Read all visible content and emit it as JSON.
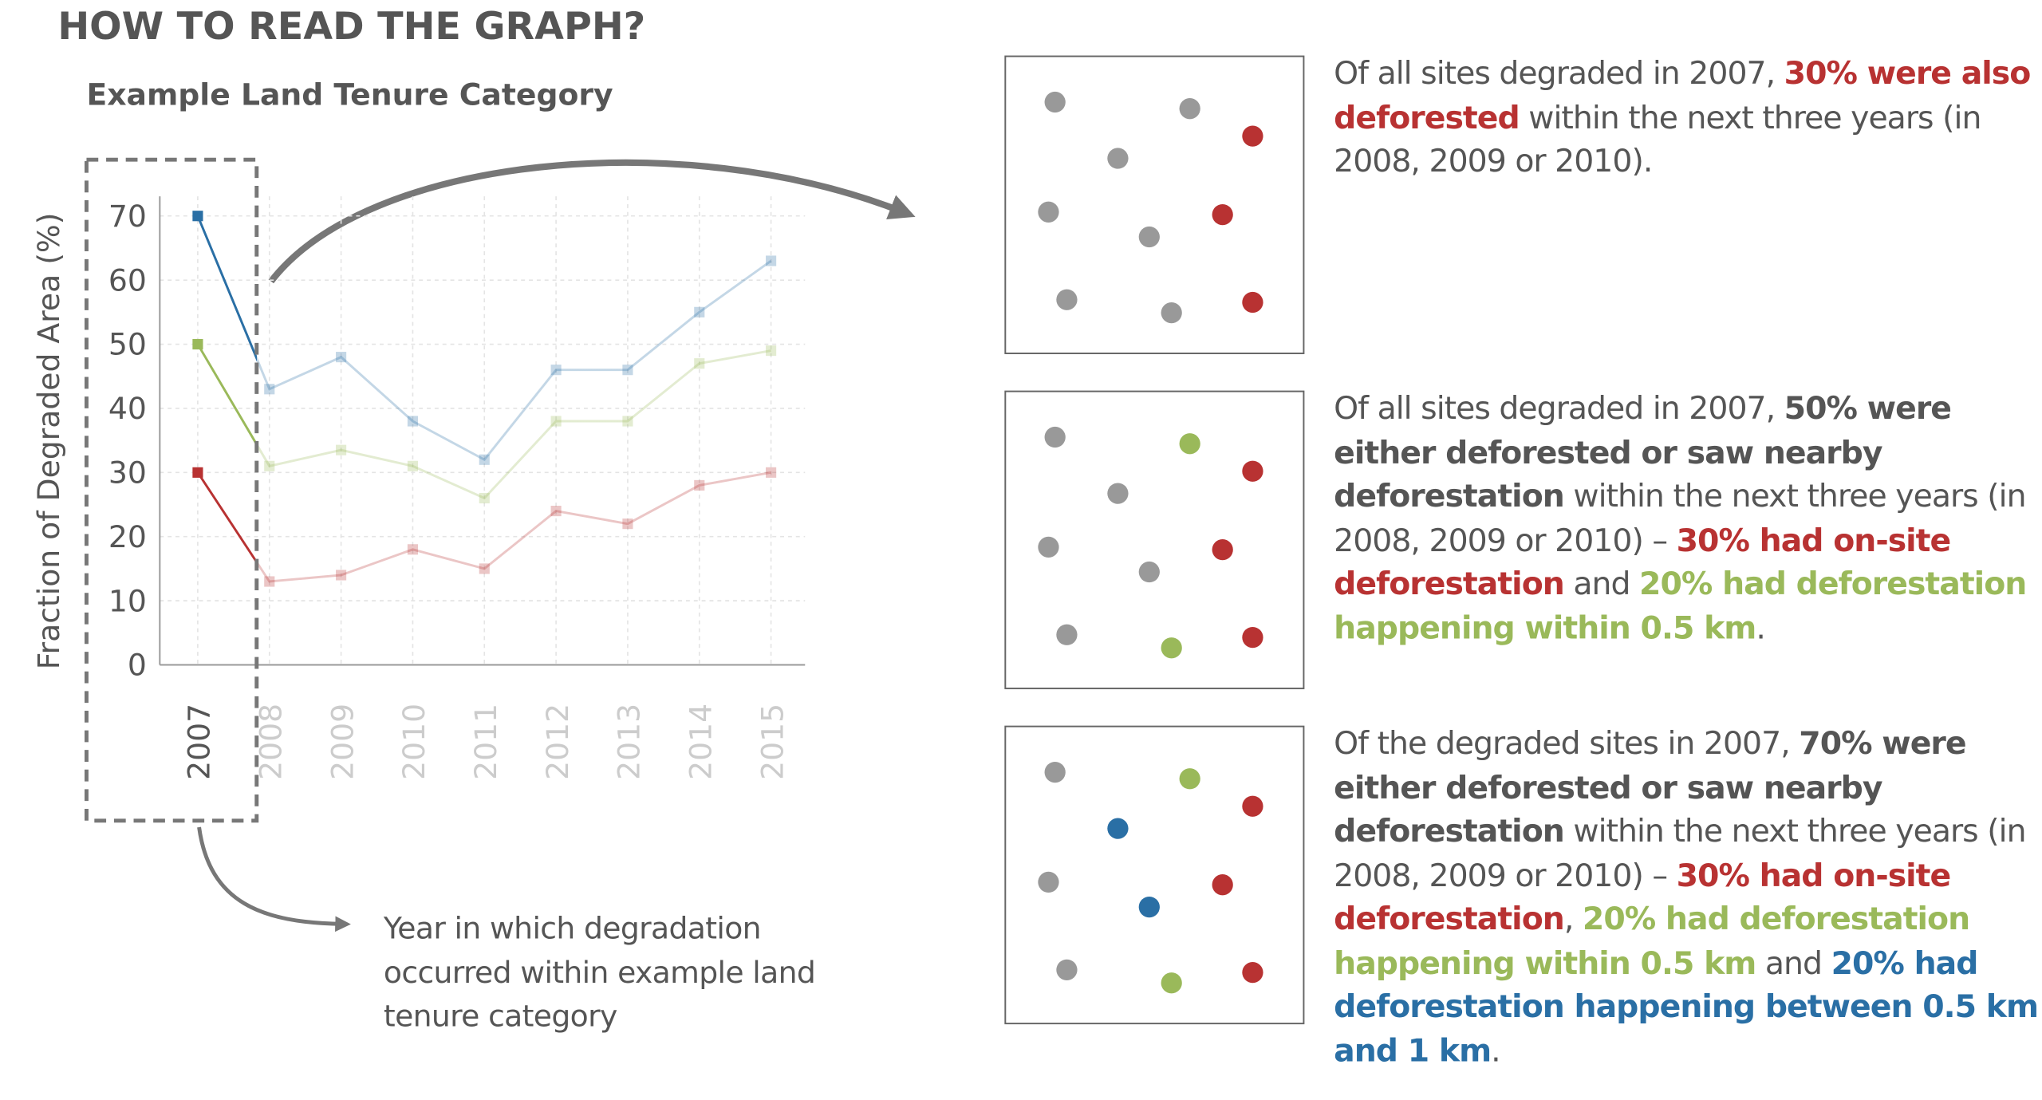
{
  "title": "HOW TO READ THE GRAPH?",
  "chart_data": {
    "type": "line",
    "title": "Example Land Tenure Category",
    "y_label": "Fraction of Degraded Area (%)",
    "categories": [
      "2007",
      "2008",
      "2009",
      "2010",
      "2011",
      "2012",
      "2013",
      "2014",
      "2015"
    ],
    "series": [
      {
        "color": "#2a6fa5",
        "values": [
          70,
          43,
          48,
          38,
          32,
          46,
          46,
          55,
          63
        ]
      },
      {
        "color": "#9ab95a",
        "values": [
          50,
          31,
          33.5,
          31,
          26,
          38,
          38,
          47,
          49
        ]
      },
      {
        "color": "#b83232",
        "values": [
          30,
          13,
          14,
          18,
          15,
          24,
          22,
          28,
          30
        ]
      }
    ],
    "ylim": [
      0,
      70
    ],
    "yticks": [
      0,
      10,
      20,
      30,
      40,
      50,
      60,
      70
    ],
    "grid": true,
    "annotation": "Year in which degradation occurred within example land tenure category"
  },
  "panels": [
    {
      "segments": [
        {
          "text": "Of all sites degraded in 2007, "
        },
        {
          "text": "30% were also deforested",
          "bold": true,
          "color": "#b83232"
        },
        {
          "text": " within the next three years (in 2008, 2009 or 2010)."
        }
      ]
    },
    {
      "segments": [
        {
          "text": "Of all sites degraded in 2007, "
        },
        {
          "text": "50% were either deforested or saw nearby deforestation",
          "bold": true,
          "color": "#555555"
        },
        {
          "text": " within the next three years (in 2008, 2009 or 2010) – "
        },
        {
          "text": "30% had on-site deforestation",
          "bold": true,
          "color": "#b83232"
        },
        {
          "text": " and "
        },
        {
          "text": "20% had deforestation happening within 0.5 km",
          "bold": true,
          "color": "#9ab95a"
        },
        {
          "text": "."
        }
      ]
    },
    {
      "segments": [
        {
          "text": "Of the degraded sites in 2007, "
        },
        {
          "text": "70% were either deforested or saw nearby deforestation",
          "bold": true,
          "color": "#555555"
        },
        {
          "text": " within the next three years (in 2008, 2009 or 2010) – "
        },
        {
          "text": "30% had on-site deforestation",
          "bold": true,
          "color": "#b83232"
        },
        {
          "text": ", "
        },
        {
          "text": "20% had deforestation happening within 0.5 km",
          "bold": true,
          "color": "#9ab95a"
        },
        {
          "text": " and "
        },
        {
          "text": "20% had deforestation happening between 0.5 km and 1 km",
          "bold": true,
          "color": "#2a6fa5"
        },
        {
          "text": "."
        }
      ]
    }
  ]
}
